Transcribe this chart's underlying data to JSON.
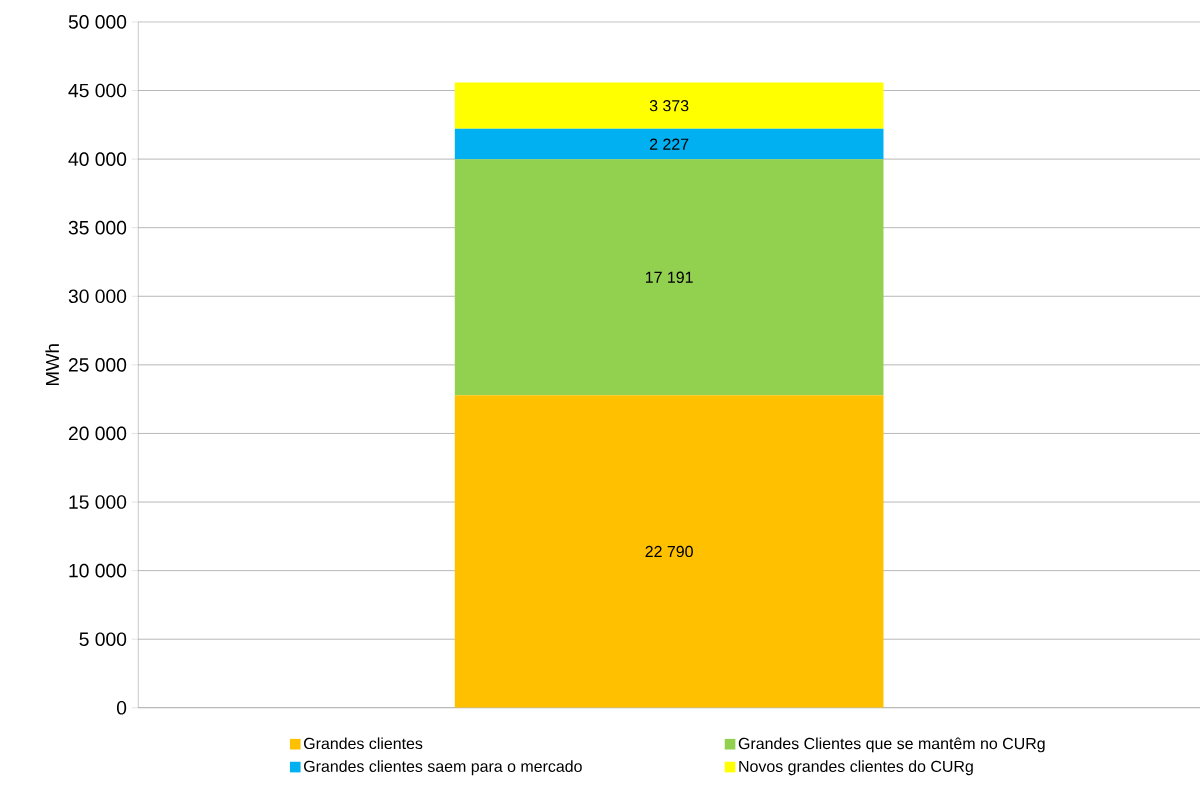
{
  "chart_data": {
    "type": "bar",
    "stacked": true,
    "ylabel": "MWh",
    "categories": [
      null
    ],
    "series": [
      {
        "name": "Grandes clientes",
        "color": "#ffc000",
        "values": [
          22790
        ],
        "value_labels": [
          "22 790"
        ]
      },
      {
        "name": "Grandes Clientes que se mantêm no CURg",
        "color": "#92d050",
        "values": [
          17191
        ],
        "value_labels": [
          "17 191"
        ]
      },
      {
        "name": "Grandes clientes saem para o mercado",
        "color": "#00b0f0",
        "values": [
          2227
        ],
        "value_labels": [
          "2 227"
        ]
      },
      {
        "name": "Novos grandes clientes do CURg",
        "color": "#ffff00",
        "values": [
          3373
        ],
        "value_labels": [
          "3 373"
        ]
      }
    ],
    "ylim": [
      0,
      50000
    ],
    "yticks": [
      0,
      {
        "value": 5000,
        "label": "5 000"
      },
      {
        "value": 10000,
        "label": "10 000"
      },
      {
        "value": 15000,
        "label": "15 000"
      },
      {
        "value": 20000,
        "label": "20 000"
      },
      {
        "value": 25000,
        "label": "25 000"
      },
      {
        "value": 30000,
        "label": "30 000"
      },
      {
        "value": 35000,
        "label": "35 000"
      },
      {
        "value": 40000,
        "label": "40 000"
      },
      {
        "value": 45000,
        "label": "45 000"
      },
      {
        "value": 50000,
        "label": "50 000"
      }
    ],
    "grid": "y",
    "legend": "bottom"
  }
}
